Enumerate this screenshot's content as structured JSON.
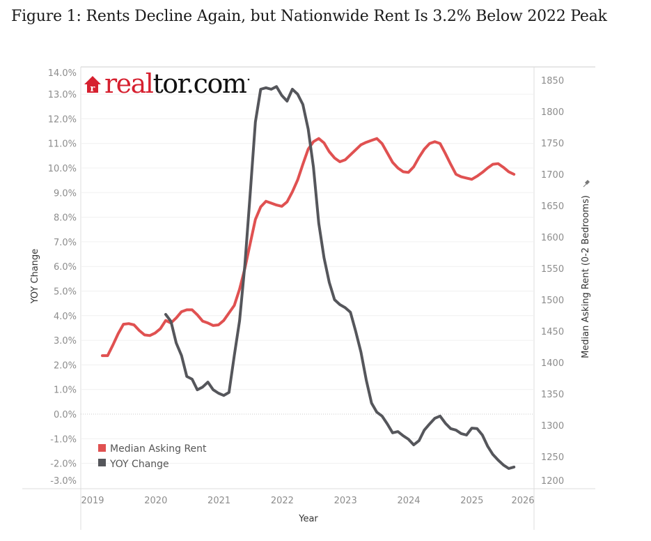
{
  "figure": {
    "title": "Figure 1: Rents Decline Again, but Nationwide Rent Is 3.2% Below 2022 Peak"
  },
  "logo": {
    "text_red": "real",
    "text_black": "tor.com",
    "icon": "house-r-icon",
    "brand_color": "#d6202f"
  },
  "chart_data": {
    "type": "line",
    "title": "Figure 1: Rents Decline Again, but Nationwide Rent Is 3.2% Below 2022 Peak",
    "xlabel": "Year",
    "ylabel_left": "YOY Change",
    "ylabel_right": "Median Asking Rent (0-2 Bedrooms)",
    "ylabel_right_pin": "pin-icon",
    "x_ticks": [
      "2019",
      "2020",
      "2021",
      "2022",
      "2023",
      "2024",
      "2025",
      "2026"
    ],
    "y_left_ticks": [
      "14.0%",
      "13.0%",
      "12.0%",
      "11.0%",
      "10.0%",
      "9.0%",
      "8.0%",
      "7.0%",
      "6.0%",
      "5.0%",
      "4.0%",
      "3.0%",
      "2.0%",
      "1.0%",
      "0.0%",
      "-1.0%",
      "-2.0%",
      "-3.0%"
    ],
    "y_left_tick_values": [
      14,
      13,
      12,
      11,
      10,
      9,
      8,
      7,
      6,
      5,
      4,
      3,
      2,
      1,
      0,
      -1,
      -2,
      -3
    ],
    "y_right_ticks": [
      "1850",
      "1800",
      "1750",
      "1700",
      "1650",
      "1600",
      "1550",
      "1500",
      "1450",
      "1400",
      "1350",
      "1300",
      "1250",
      "1200"
    ],
    "y_right_tick_values": [
      1850,
      1800,
      1750,
      1700,
      1650,
      1600,
      1550,
      1500,
      1450,
      1400,
      1350,
      1300,
      1250,
      1200
    ],
    "y_left_range": [
      -3.3,
      14.1
    ],
    "y_right_range": [
      1200,
      1850
    ],
    "x_range": [
      "2019-01",
      "2026-01"
    ],
    "grid": true,
    "zero_line": "dotted",
    "legend": {
      "position": "bottom-left",
      "entries": [
        {
          "label": "Median Asking Rent",
          "color": "#e05151"
        },
        {
          "label": "YOY Change",
          "color": "#55565b"
        }
      ]
    },
    "start_month": "2019-03",
    "series": [
      {
        "name": "Median Asking Rent",
        "axis": "right",
        "color": "#e05151",
        "start_index": 0,
        "values": [
          1411,
          1411,
          1428,
          1446,
          1461,
          1462,
          1460,
          1451,
          1444,
          1443,
          1447,
          1454,
          1467,
          1463,
          1471,
          1481,
          1484,
          1484,
          1476,
          1466,
          1463,
          1459,
          1460,
          1467,
          1479,
          1491,
          1517,
          1550,
          1589,
          1628,
          1648,
          1657,
          1654,
          1651,
          1649,
          1656,
          1672,
          1691,
          1716,
          1740,
          1752,
          1757,
          1750,
          1736,
          1726,
          1720,
          1723,
          1731,
          1739,
          1747,
          1751,
          1754,
          1757,
          1749,
          1734,
          1719,
          1710,
          1704,
          1703,
          1712,
          1727,
          1740,
          1749,
          1752,
          1749,
          1733,
          1716,
          1700,
          1696,
          1694,
          1692,
          1697,
          1703,
          1710,
          1716,
          1717,
          1711,
          1704,
          1700
        ]
      },
      {
        "name": "YOY Change",
        "axis": "left",
        "color": "#55565b",
        "start_index": 12,
        "values": [
          4.05,
          3.77,
          2.89,
          2.38,
          1.53,
          1.42,
          0.99,
          1.1,
          1.3,
          0.99,
          0.85,
          0.76,
          0.88,
          2.38,
          3.8,
          6.06,
          8.9,
          11.87,
          13.2,
          13.26,
          13.2,
          13.31,
          12.95,
          12.72,
          13.2,
          13.0,
          12.58,
          11.59,
          10.03,
          7.76,
          6.35,
          5.35,
          4.65,
          4.45,
          4.33,
          4.14,
          3.37,
          2.52,
          1.39,
          0.45,
          0.08,
          -0.08,
          -0.4,
          -0.76,
          -0.71,
          -0.88,
          -1.02,
          -1.25,
          -1.08,
          -0.65,
          -0.4,
          -0.17,
          -0.08,
          -0.37,
          -0.59,
          -0.65,
          -0.79,
          -0.85,
          -0.57,
          -0.59,
          -0.85,
          -1.3,
          -1.64,
          -1.87,
          -2.07,
          -2.21,
          -2.15
        ]
      }
    ]
  }
}
